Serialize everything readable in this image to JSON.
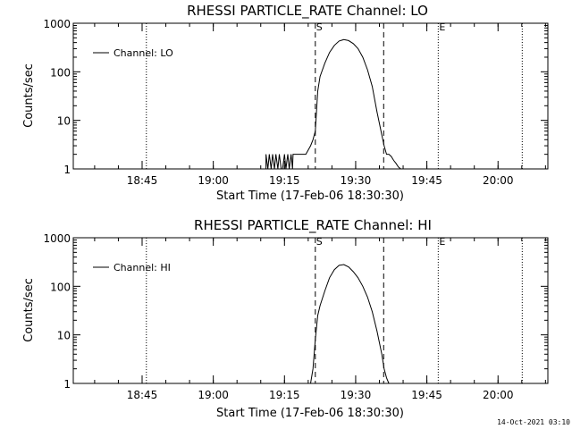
{
  "timestamp": "14-Oct-2021 03:10",
  "chart_data": [
    {
      "type": "line",
      "title": "RHESSI PARTICLE_RATE Channel: LO",
      "xlabel": "Start Time (17-Feb-06 18:30:30)",
      "ylabel": "Counts/sec",
      "legend": "Channel: LO",
      "legend_position": "top-left",
      "x_unit": "minutes after 18:30:30",
      "xlim": [
        0,
        100
      ],
      "ylim": [
        1,
        1000
      ],
      "yscale": "log",
      "xticks": [
        {
          "label": "18:45",
          "value": 14.5
        },
        {
          "label": "19:00",
          "value": 29.5
        },
        {
          "label": "19:15",
          "value": 44.5
        },
        {
          "label": "19:30",
          "value": 59.5
        },
        {
          "label": "19:45",
          "value": 74.5
        },
        {
          "label": "20:00",
          "value": 89.5
        }
      ],
      "yticks": [
        {
          "label": "1",
          "value": 1
        },
        {
          "label": "10",
          "value": 10
        },
        {
          "label": "100",
          "value": 100
        },
        {
          "label": "1000",
          "value": 1000
        }
      ],
      "dotted_lines": [
        15.4,
        76.9,
        94.6
      ],
      "dashed_lines": [
        51.0,
        65.4
      ],
      "markers": [
        {
          "label": "S",
          "value": 51.0
        },
        {
          "label": "E",
          "value": 76.9
        }
      ],
      "series": [
        {
          "name": "Channel: LO",
          "x": [
            40.6,
            40.6,
            41.0,
            41.3,
            41.7,
            42.0,
            42.4,
            42.7,
            43.1,
            43.4,
            43.8,
            44.1,
            44.5,
            44.8,
            45.2,
            45.5,
            45.9,
            46.2,
            46.3,
            46.6,
            47.0,
            47.5,
            48.0,
            49.0,
            50.0,
            50.5,
            51.0,
            51.5,
            52.0,
            53.0,
            54.0,
            55.0,
            56.0,
            57.0,
            58.0,
            59.0,
            60.0,
            61.0,
            62.0,
            63.0,
            64.0,
            65.0,
            65.5,
            66.0,
            66.5,
            67.0,
            67.5,
            68.0,
            68.5,
            69.0
          ],
          "y": [
            1,
            2,
            1,
            2,
            1,
            2,
            1,
            2,
            1,
            2,
            1,
            1,
            2,
            1,
            2,
            1,
            2,
            1,
            2,
            2,
            2,
            2,
            2,
            2,
            3,
            4,
            6,
            40,
            80,
            150,
            250,
            350,
            430,
            460,
            440,
            380,
            300,
            200,
            110,
            50,
            15,
            5,
            3,
            2,
            2,
            1.8,
            1.5,
            1.3,
            1.1,
            1
          ]
        }
      ]
    },
    {
      "type": "line",
      "title": "RHESSI PARTICLE_RATE Channel: HI",
      "xlabel": "Start Time (17-Feb-06 18:30:30)",
      "ylabel": "Counts/sec",
      "legend": "Channel: HI",
      "legend_position": "top-left",
      "x_unit": "minutes after 18:30:30",
      "xlim": [
        0,
        100
      ],
      "ylim": [
        1,
        1000
      ],
      "yscale": "log",
      "xticks": [
        {
          "label": "18:45",
          "value": 14.5
        },
        {
          "label": "19:00",
          "value": 29.5
        },
        {
          "label": "19:15",
          "value": 44.5
        },
        {
          "label": "19:30",
          "value": 59.5
        },
        {
          "label": "19:45",
          "value": 74.5
        },
        {
          "label": "20:00",
          "value": 89.5
        }
      ],
      "yticks": [
        {
          "label": "1",
          "value": 1
        },
        {
          "label": "10",
          "value": 10
        },
        {
          "label": "100",
          "value": 100
        },
        {
          "label": "1000",
          "value": 1000
        }
      ],
      "dotted_lines": [
        15.4,
        76.9,
        94.6
      ],
      "dashed_lines": [
        51.0,
        65.4
      ],
      "markers": [
        {
          "label": "S",
          "value": 51.0
        },
        {
          "label": "E",
          "value": 76.9
        }
      ],
      "series": [
        {
          "name": "Channel: HI",
          "x": [
            50.0,
            50.5,
            51.0,
            51.5,
            52.0,
            53.0,
            54.0,
            55.0,
            56.0,
            57.0,
            58.0,
            59.0,
            60.0,
            61.0,
            62.0,
            63.0,
            64.0,
            65.0,
            65.5,
            66.0,
            66.5
          ],
          "y": [
            1,
            2,
            8,
            25,
            40,
            80,
            150,
            220,
            270,
            280,
            250,
            200,
            150,
            100,
            60,
            30,
            12,
            4,
            2,
            1.3,
            1
          ]
        }
      ]
    }
  ]
}
